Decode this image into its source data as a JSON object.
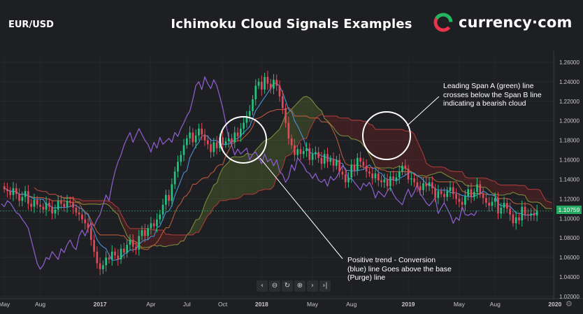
{
  "header": {
    "pair": "EUR/USD",
    "title": "Ichimoku Cloud Signals Examples",
    "brand": "currency·com"
  },
  "colors": {
    "background": "#1e1f22",
    "bull_candle": "#26c281",
    "bear_candle": "#e04a5a",
    "conversion_line": "#4a90d9",
    "base_line": "#b85a3a",
    "lagging_span": "#8a5cc8",
    "span_a": "#7a8a3a",
    "span_b": "#a83a3a",
    "price_line": "#26a862",
    "brand_red": "#e8344a",
    "brand_green": "#23b560"
  },
  "annotations": {
    "bearish": "Leading Span A (green) line crosses below the Span B line indicating a bearish cloud",
    "bullish": "Positive trend - Conversion (blue) line Goes above the base (Purge) line"
  },
  "price_badge": "1.10759",
  "toolbar": {
    "icons": [
      "chevron-left-icon",
      "zoom-out-icon",
      "reset-icon",
      "zoom-in-icon",
      "chevron-right-icon",
      "jump-end-icon"
    ],
    "glyphs": [
      "‹",
      "⊖",
      "↻",
      "⊕",
      "›",
      "›|"
    ]
  },
  "chart_data": {
    "type": "candlestick",
    "title": "Ichimoku Cloud Signals Examples",
    "ylim": [
      1.02,
      1.265
    ],
    "y_ticks": [
      "1.26000",
      "1.24000",
      "1.22000",
      "1.20000",
      "1.18000",
      "1.16000",
      "1.14000",
      "1.12000",
      "1.10000",
      "1.08000",
      "1.06000",
      "1.04000",
      "1.02000"
    ],
    "y_tick_values": [
      1.26,
      1.24,
      1.22,
      1.2,
      1.18,
      1.16,
      1.14,
      1.12,
      1.1,
      1.08,
      1.06,
      1.04,
      1.02
    ],
    "x_ticks": [
      "May",
      "Aug",
      "2017",
      "Apr",
      "Jul",
      "Oct",
      "2018",
      "May",
      "Aug",
      "2019",
      "May",
      "Aug",
      "2020"
    ],
    "x_tick_bold": [
      false,
      false,
      true,
      false,
      false,
      false,
      true,
      false,
      false,
      true,
      false,
      false,
      true
    ],
    "x_tick_index": [
      0,
      12,
      32,
      49,
      61,
      73,
      86,
      103,
      116,
      135,
      152,
      164,
      184
    ],
    "last_price": 1.10759,
    "close": [
      1.13,
      1.128,
      1.124,
      1.131,
      1.125,
      1.118,
      1.122,
      1.128,
      1.115,
      1.112,
      1.119,
      1.114,
      1.112,
      1.109,
      1.116,
      1.112,
      1.105,
      1.109,
      1.118,
      1.115,
      1.112,
      1.118,
      1.116,
      1.111,
      1.106,
      1.104,
      1.099,
      1.095,
      1.09,
      1.078,
      1.066,
      1.054,
      1.048,
      1.052,
      1.06,
      1.058,
      1.066,
      1.062,
      1.058,
      1.069,
      1.065,
      1.073,
      1.078,
      1.071,
      1.068,
      1.082,
      1.088,
      1.082,
      1.09,
      1.095,
      1.092,
      1.099,
      1.104,
      1.114,
      1.124,
      1.118,
      1.135,
      1.148,
      1.158,
      1.165,
      1.175,
      1.182,
      1.188,
      1.178,
      1.185,
      1.192,
      1.186,
      1.18,
      1.176,
      1.168,
      1.178,
      1.172,
      1.183,
      1.176,
      1.179,
      1.182,
      1.178,
      1.188,
      1.184,
      1.192,
      1.198,
      1.205,
      1.21,
      1.222,
      1.236,
      1.24,
      1.232,
      1.245,
      1.238,
      1.233,
      1.242,
      1.236,
      1.225,
      1.213,
      1.198,
      1.182,
      1.175,
      1.165,
      1.171,
      1.166,
      1.169,
      1.172,
      1.16,
      1.166,
      1.168,
      1.162,
      1.156,
      1.166,
      1.158,
      1.161,
      1.154,
      1.16,
      1.148,
      1.145,
      1.137,
      1.142,
      1.155,
      1.149,
      1.162,
      1.158,
      1.154,
      1.148,
      1.146,
      1.141,
      1.146,
      1.139,
      1.137,
      1.14,
      1.133,
      1.143,
      1.139,
      1.142,
      1.148,
      1.154,
      1.151,
      1.14,
      1.141,
      1.137,
      1.133,
      1.129,
      1.136,
      1.133,
      1.137,
      1.131,
      1.121,
      1.128,
      1.125,
      1.122,
      1.128,
      1.132,
      1.125,
      1.12,
      1.117,
      1.114,
      1.123,
      1.13,
      1.122,
      1.127,
      1.135,
      1.125,
      1.121,
      1.116,
      1.113,
      1.117,
      1.121,
      1.105,
      1.111,
      1.116,
      1.11,
      1.104,
      1.095,
      1.101,
      1.098,
      1.112,
      1.104,
      1.103,
      1.105,
      1.103,
      1.108
    ]
  }
}
